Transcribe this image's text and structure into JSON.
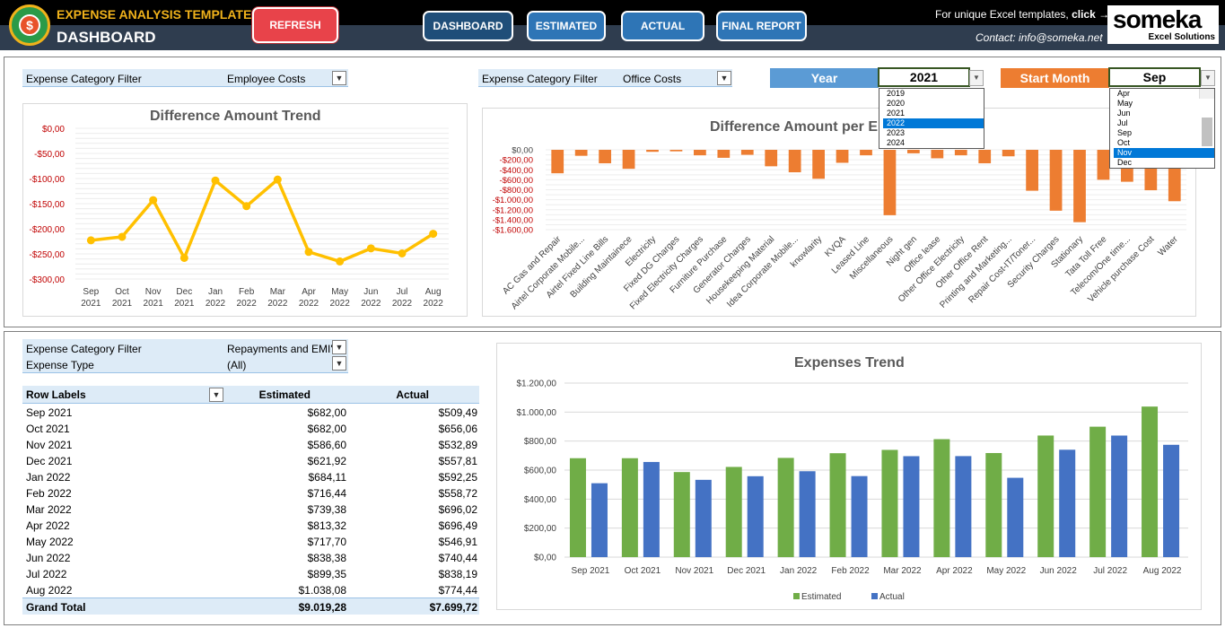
{
  "header": {
    "app_title": "EXPENSE ANALYSIS TEMPLATE",
    "page_title": "DASHBOARD",
    "refresh_label": "REFRESH",
    "nav": {
      "dashboard": "DASHBOARD",
      "estimated": "ESTIMATED",
      "actual": "ACTUAL",
      "final_report": "FINAL REPORT"
    },
    "promo_text": "For unique Excel templates,",
    "promo_link": "click",
    "promo_arrow": "→",
    "contact": "Contact: info@someka.net",
    "brand": {
      "name": "someka",
      "sub": "Excel Solutions"
    },
    "colors": {
      "accent": "#f0b21b",
      "refresh": "#e8434a",
      "nav": "#2e75b6",
      "nav_active": "#1f4e79"
    }
  },
  "top_left_filter": {
    "label": "Expense Category Filter",
    "value": "Employee Costs"
  },
  "top_right_filter": {
    "label": "Expense Category Filter",
    "value": "Office Costs"
  },
  "year_selector": {
    "label": "Year",
    "value": "2021",
    "options": [
      "2019",
      "2020",
      "2021",
      "2022",
      "2023",
      "2024"
    ],
    "highlighted": "2022",
    "label_color": "#5b9bd5"
  },
  "month_selector": {
    "label": "Start Month",
    "value": "Sep",
    "options": [
      "Apr",
      "May",
      "Jun",
      "Jul",
      "Sep",
      "Oct",
      "Nov",
      "Dec"
    ],
    "highlighted": "Nov",
    "label_color": "#ed7d31"
  },
  "bottom_filters": {
    "category": {
      "label": "Expense Category Filter",
      "value": "Repayments and EMI'"
    },
    "type": {
      "label": "Expense Type",
      "value": "(All)"
    }
  },
  "pivot_table": {
    "headers": [
      "Row Labels",
      "Estimated",
      "Actual"
    ],
    "rows": [
      [
        "Sep 2021",
        "$682,00",
        "$509,49"
      ],
      [
        "Oct 2021",
        "$682,00",
        "$656,06"
      ],
      [
        "Nov 2021",
        "$586,60",
        "$532,89"
      ],
      [
        "Dec 2021",
        "$621,92",
        "$557,81"
      ],
      [
        "Jan 2022",
        "$684,11",
        "$592,25"
      ],
      [
        "Feb 2022",
        "$716,44",
        "$558,72"
      ],
      [
        "Mar 2022",
        "$739,38",
        "$696,02"
      ],
      [
        "Apr 2022",
        "$813,32",
        "$696,49"
      ],
      [
        "May 2022",
        "$717,70",
        "$546,91"
      ],
      [
        "Jun 2022",
        "$838,38",
        "$740,44"
      ],
      [
        "Jul 2022",
        "$899,35",
        "$838,19"
      ],
      [
        "Aug 2022",
        "$1.038,08",
        "$774,44"
      ]
    ],
    "total": [
      "Grand Total",
      "$9.019,28",
      "$7.699,72"
    ]
  },
  "chart_data": [
    {
      "type": "line",
      "title": "Difference Amount Trend",
      "categories": [
        "Sep 2021",
        "Oct 2021",
        "Nov 2021",
        "Dec 2021",
        "Jan 2022",
        "Feb 2022",
        "Mar 2022",
        "Apr 2022",
        "May 2022",
        "Jun 2022",
        "Jul 2022",
        "Aug 2022"
      ],
      "cat_month": [
        "Sep",
        "Oct",
        "Nov",
        "Dec",
        "Jan",
        "Feb",
        "Mar",
        "Apr",
        "May",
        "Jun",
        "Jul",
        "Aug"
      ],
      "cat_year": [
        "2021",
        "2021",
        "2021",
        "2021",
        "2022",
        "2022",
        "2022",
        "2022",
        "2022",
        "2022",
        "2022",
        "2022"
      ],
      "values": [
        -223,
        -216,
        -143,
        -258,
        -104,
        -155,
        -102,
        -246,
        -265,
        -239,
        -249,
        -210
      ],
      "ylim": [
        -300,
        0
      ],
      "yticks": [
        0,
        -50,
        -100,
        -150,
        -200,
        -250,
        -300
      ],
      "ytick_labels": [
        "$0,00",
        "-$50,00",
        "-$100,00",
        "-$150,00",
        "-$200,00",
        "-$250,00",
        "-$300,00"
      ],
      "color": "#ffc000"
    },
    {
      "type": "bar",
      "title": "Difference Amount per E",
      "categories": [
        "AC Gas and Repair",
        "Airtel Corporate Mobile...",
        "Airtel Fixed Line Bills",
        "Building Maintainece",
        "Electricity",
        "Fixed DG Charges",
        "Fixed Electricity Charges",
        "Furniture Purchase",
        "Generator Charges",
        "Housekeeping Material",
        "Idea Corporate Mobile...",
        "knowlarity",
        "KVQA",
        "Leased Line",
        "Miscellaneous",
        "Night gen",
        "Office lease",
        "Other Office Electricity",
        "Other Office Rent",
        "Printing and Marketing...",
        "Repair Cost-IT/Toner...",
        "Security Charges",
        "Stationary",
        "Tata Toll Free",
        "Telecom/One time...",
        "Vehicle purchase Cost",
        "Water"
      ],
      "values": [
        -470,
        -120,
        -270,
        -380,
        -40,
        -30,
        -110,
        -160,
        -100,
        -330,
        -450,
        -580,
        -260,
        -110,
        -1310,
        -70,
        -170,
        -110,
        -270,
        -130,
        -820,
        -1220,
        -1450,
        -600,
        -640,
        -810,
        -1030
      ],
      "ylim": [
        -1600,
        0
      ],
      "yticks": [
        0,
        -200,
        -400,
        -600,
        -800,
        -1000,
        -1200,
        -1400,
        -1600
      ],
      "ytick_labels": [
        "$0,00",
        "-$200,00",
        "-$400,00",
        "-$600,00",
        "-$800,00",
        "-$1.000,00",
        "-$1.200,00",
        "-$1.400,00",
        "-$1.600,00"
      ],
      "color": "#ed7d31"
    },
    {
      "type": "bar",
      "title": "Expenses Trend",
      "categories": [
        "Sep 2021",
        "Oct 2021",
        "Nov 2021",
        "Dec 2021",
        "Jan 2022",
        "Feb 2022",
        "Mar 2022",
        "Apr 2022",
        "May 2022",
        "Jun 2022",
        "Jul 2022",
        "Aug 2022"
      ],
      "series": [
        {
          "name": "Estimated",
          "values": [
            682.0,
            682.0,
            586.6,
            621.92,
            684.11,
            716.44,
            739.38,
            813.32,
            717.7,
            838.38,
            899.35,
            1038.08
          ],
          "color": "#70ad47"
        },
        {
          "name": "Actual",
          "values": [
            509.49,
            656.06,
            532.89,
            557.81,
            592.25,
            558.72,
            696.02,
            696.49,
            546.91,
            740.44,
            838.19,
            774.44
          ],
          "color": "#4472c4"
        }
      ],
      "ylim": [
        0,
        1200
      ],
      "yticks": [
        0,
        200,
        400,
        600,
        800,
        1000,
        1200
      ],
      "ytick_labels": [
        "$0,00",
        "$200,00",
        "$400,00",
        "$600,00",
        "$800,00",
        "$1.000,00",
        "$1.200,00"
      ],
      "legend": "bottom"
    }
  ]
}
